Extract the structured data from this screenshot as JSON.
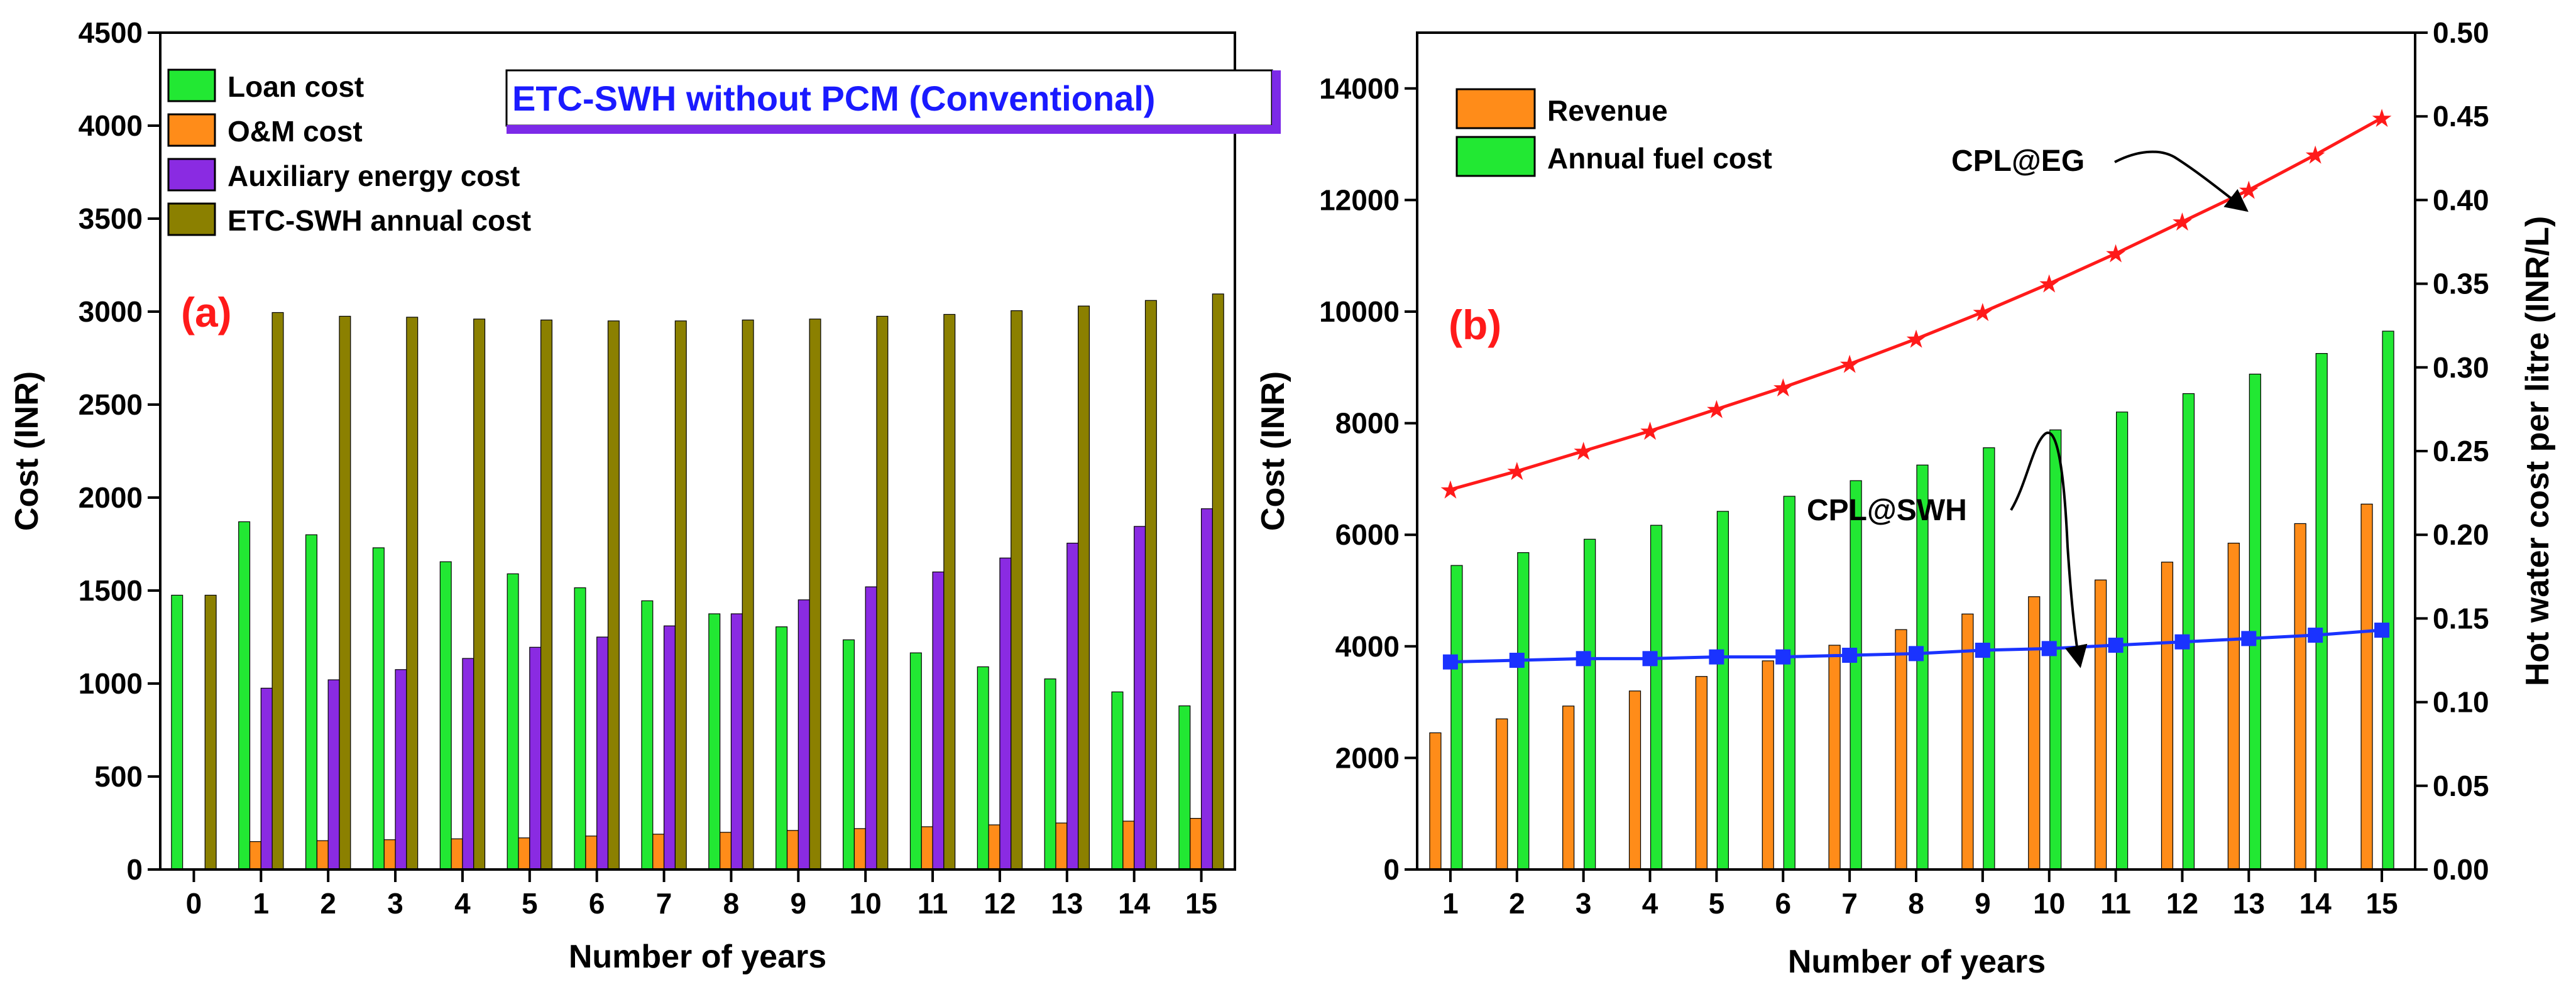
{
  "chart_data": [
    {
      "type": "bar",
      "panel_label": "(a)",
      "title": "ETC-SWH without PCM (Conventional)",
      "xlabel": "Number of years",
      "ylabel": "Cost (INR)",
      "ylim": [
        0,
        4500
      ],
      "ytick_step": 500,
      "categories": [
        "0",
        "1",
        "2",
        "3",
        "4",
        "5",
        "6",
        "7",
        "8",
        "9",
        "10",
        "11",
        "12",
        "13",
        "14",
        "15"
      ],
      "legend_position": "top-left",
      "series": [
        {
          "name": "Loan cost",
          "color": "#22e833",
          "values": [
            1475,
            1870,
            1800,
            1730,
            1655,
            1590,
            1515,
            1445,
            1375,
            1305,
            1235,
            1165,
            1090,
            1025,
            955,
            880
          ]
        },
        {
          "name": "O&M cost",
          "color": "#ff8c19",
          "values": [
            0,
            150,
            155,
            160,
            165,
            170,
            180,
            190,
            200,
            210,
            220,
            230,
            240,
            250,
            260,
            275
          ]
        },
        {
          "name": "Auxiliary energy cost",
          "color": "#8a2be2",
          "values": [
            0,
            975,
            1020,
            1075,
            1135,
            1195,
            1250,
            1310,
            1375,
            1450,
            1520,
            1600,
            1675,
            1755,
            1845,
            1940
          ]
        },
        {
          "name": "ETC-SWH annual cost",
          "color": "#8b8000",
          "values": [
            1475,
            2995,
            2975,
            2970,
            2960,
            2955,
            2950,
            2950,
            2955,
            2960,
            2975,
            2985,
            3005,
            3030,
            3060,
            3095
          ]
        }
      ]
    },
    {
      "type": "bar",
      "panel_label": "(b)",
      "xlabel": "Number of years",
      "ylabel": "Cost (INR)",
      "y2label": "Hot water cost per litre (INR/L)",
      "ylim": [
        0,
        15000
      ],
      "ytick_step": 2000,
      "y2lim": [
        0,
        0.5
      ],
      "y2tick_step": 0.05,
      "categories": [
        "1",
        "2",
        "3",
        "4",
        "5",
        "6",
        "7",
        "8",
        "9",
        "10",
        "11",
        "12",
        "13",
        "14",
        "15"
      ],
      "legend_position": "top-left",
      "series": [
        {
          "name": "Revenue",
          "color": "#ff8c19",
          "values": [
            2450,
            2700,
            2930,
            3200,
            3460,
            3740,
            4020,
            4300,
            4580,
            4890,
            5190,
            5510,
            5850,
            6200,
            6550
          ]
        },
        {
          "name": "Annual fuel cost",
          "color": "#22e833",
          "values": [
            5450,
            5680,
            5920,
            6170,
            6420,
            6690,
            6970,
            7250,
            7560,
            7880,
            8200,
            8530,
            8880,
            9250,
            9650
          ]
        }
      ],
      "lines": [
        {
          "name": "CPL@EG",
          "axis": "right",
          "color": "#ff1a1a",
          "marker": "star",
          "values": [
            0.227,
            0.238,
            0.25,
            0.262,
            0.275,
            0.288,
            0.302,
            0.317,
            0.333,
            0.35,
            0.368,
            0.387,
            0.406,
            0.427,
            0.449
          ]
        },
        {
          "name": "CPL@SWH",
          "axis": "right",
          "color": "#1a33ff",
          "marker": "square",
          "values": [
            0.124,
            0.125,
            0.126,
            0.126,
            0.127,
            0.127,
            0.128,
            0.129,
            0.131,
            0.132,
            0.134,
            0.136,
            0.138,
            0.14,
            0.143
          ]
        }
      ],
      "annotations": [
        "CPL@EG",
        "CPL@SWH"
      ]
    }
  ]
}
